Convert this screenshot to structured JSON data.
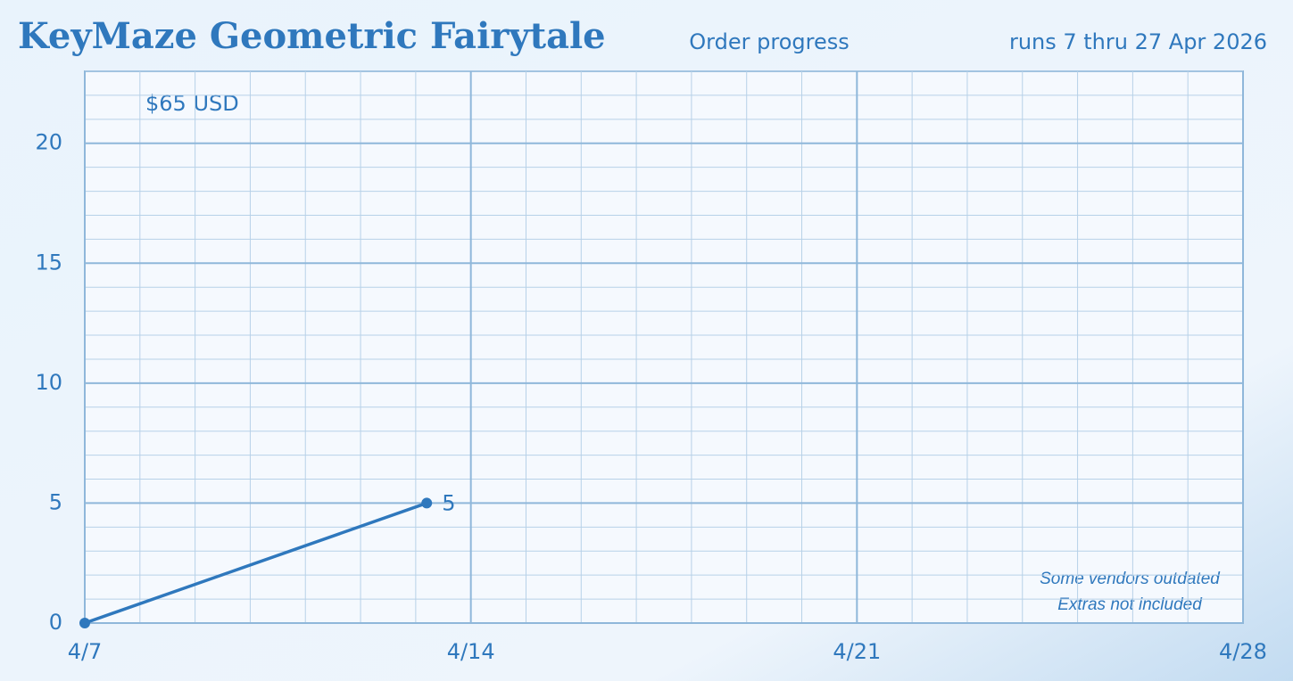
{
  "chart_data": {
    "type": "line",
    "title": "KeyMaze Geometric Fairytale",
    "subtitle": "Order progress",
    "date_range": "runs 7 thru 27 Apr 2026",
    "annotation": "$65 USD",
    "notes": [
      "Some vendors outdated",
      "Extras not included"
    ],
    "series": [
      {
        "color": "#2f78bd",
        "x": [
          7,
          13.2
        ],
        "values": [
          0,
          5
        ]
      }
    ],
    "xlim": [
      7,
      28
    ],
    "xticks": [
      {
        "value": 7,
        "label": "4/7"
      },
      {
        "value": 14,
        "label": "4/14"
      },
      {
        "value": 21,
        "label": "4/21"
      },
      {
        "value": 28,
        "label": "4/28"
      }
    ],
    "ylim": [
      0,
      23
    ],
    "yticks": [
      0,
      5,
      10,
      15,
      20
    ],
    "grid": true,
    "minor_grid": true
  }
}
